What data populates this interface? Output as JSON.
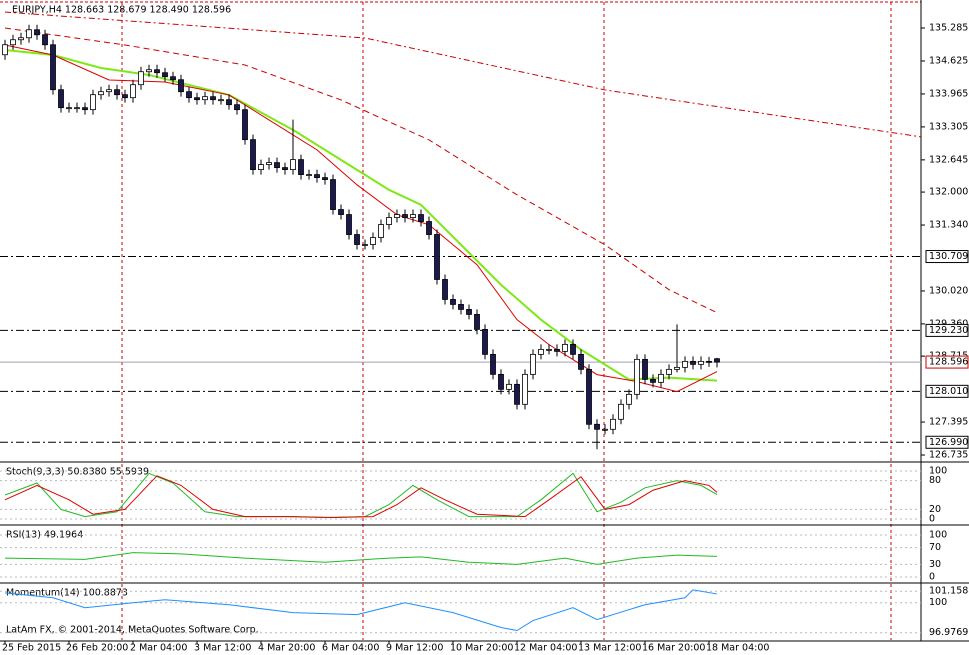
{
  "chart_data": {
    "type": "candlestick",
    "title": "EURJPY,H4 128.663 128.679 128.490 128.596",
    "ylim": [
      126.595,
      135.846
    ],
    "yticks": [
      135.285,
      134.625,
      133.965,
      133.305,
      132.645,
      {
        "value": 132,
        "label": "132.000"
      },
      {
        "value": 131.34,
        "label": "131.340"
      },
      {
        "value": 130.02,
        "label": "130.020"
      },
      {
        "value": 129.36,
        "label": "129.360"
      },
      128.715,
      127.395,
      126.735
    ],
    "levels": [
      130.709,
      {
        "value": 129.23,
        "label": "129.230"
      },
      {
        "value": 128.01,
        "label": "128.010"
      },
      {
        "value": 126.99,
        "label": "126.990"
      }
    ],
    "current_price": 128.596,
    "bull_color": "#ffffff",
    "bear_color": "#1a1a4e",
    "candles": [
      [
        134.75,
        135.05,
        134.65,
        134.95
      ],
      [
        134.95,
        135.15,
        134.85,
        135.05
      ],
      [
        135.05,
        135.19,
        134.95,
        135.09
      ],
      [
        135.09,
        135.35,
        134.99,
        135.25
      ],
      [
        135.25,
        135.35,
        135.05,
        135.15
      ],
      [
        135.15,
        135.25,
        134.85,
        134.95
      ],
      [
        134.95,
        135.05,
        133.95,
        134.05
      ],
      [
        134.05,
        134.15,
        133.59,
        133.69
      ],
      [
        133.69,
        133.79,
        133.59,
        133.69
      ],
      [
        133.69,
        133.79,
        133.59,
        133.69
      ],
      [
        133.69,
        133.79,
        133.55,
        133.65
      ],
      [
        133.65,
        134.05,
        133.55,
        133.95
      ],
      [
        133.95,
        134.11,
        133.85,
        134.01
      ],
      [
        134.01,
        134.15,
        133.91,
        134.05
      ],
      [
        134.05,
        134.15,
        133.85,
        133.95
      ],
      [
        133.95,
        134.05,
        133.79,
        133.89
      ],
      [
        133.89,
        134.25,
        133.79,
        134.15
      ],
      [
        134.15,
        134.51,
        134.05,
        134.41
      ],
      [
        134.41,
        134.55,
        134.31,
        134.45
      ],
      [
        134.45,
        134.55,
        134.29,
        134.39
      ],
      [
        134.39,
        134.49,
        134.21,
        134.31
      ],
      [
        134.31,
        134.41,
        134.15,
        134.25
      ],
      [
        134.25,
        134.35,
        133.91,
        134.01
      ],
      [
        134.01,
        134.11,
        133.79,
        133.89
      ],
      [
        133.89,
        133.99,
        133.75,
        133.85
      ],
      [
        133.85,
        134.01,
        133.75,
        133.91
      ],
      [
        133.91,
        134.01,
        133.75,
        133.85
      ],
      [
        133.85,
        133.95,
        133.75,
        133.85
      ],
      [
        133.85,
        133.95,
        133.65,
        133.75
      ],
      [
        133.75,
        133.85,
        133.55,
        133.65
      ],
      [
        133.65,
        133.75,
        132.95,
        133.05
      ],
      [
        133.05,
        133.15,
        132.35,
        132.45
      ],
      [
        132.45,
        132.65,
        132.35,
        132.55
      ],
      [
        132.55,
        132.69,
        132.45,
        132.59
      ],
      [
        132.59,
        132.69,
        132.39,
        132.49
      ],
      [
        132.49,
        132.59,
        132.35,
        132.45
      ],
      [
        132.45,
        133.45,
        132.35,
        132.65
      ],
      [
        132.65,
        132.75,
        132.25,
        132.35
      ],
      [
        132.35,
        132.45,
        132.25,
        132.35
      ],
      [
        132.35,
        132.45,
        132.19,
        132.29
      ],
      [
        132.29,
        132.39,
        132.15,
        132.25
      ],
      [
        132.25,
        132.35,
        131.55,
        131.65
      ],
      [
        131.65,
        131.75,
        131.45,
        131.55
      ],
      [
        131.55,
        131.65,
        131.05,
        131.15
      ],
      [
        131.15,
        131.25,
        130.85,
        130.95
      ],
      [
        130.95,
        131.05,
        130.85,
        130.95
      ],
      [
        130.95,
        131.19,
        130.85,
        131.09
      ],
      [
        131.09,
        131.45,
        130.99,
        131.35
      ],
      [
        131.35,
        131.59,
        131.25,
        131.49
      ],
      [
        131.49,
        131.65,
        131.39,
        131.55
      ],
      [
        131.55,
        131.65,
        131.39,
        131.49
      ],
      [
        131.49,
        131.65,
        131.39,
        131.55
      ],
      [
        131.55,
        131.65,
        131.31,
        131.41
      ],
      [
        131.41,
        131.51,
        131.05,
        131.15
      ],
      [
        131.15,
        131.25,
        130.15,
        130.25
      ],
      [
        130.25,
        130.35,
        129.75,
        129.85
      ],
      [
        129.85,
        129.95,
        129.65,
        129.75
      ],
      [
        129.75,
        129.85,
        129.55,
        129.65
      ],
      [
        129.65,
        129.75,
        129.45,
        129.55
      ],
      [
        129.55,
        129.65,
        129.15,
        129.25
      ],
      [
        129.25,
        129.35,
        128.65,
        128.75
      ],
      [
        128.75,
        128.85,
        128.25,
        128.35
      ],
      [
        128.35,
        128.45,
        127.95,
        128.05
      ],
      [
        128.05,
        128.25,
        127.95,
        128.15
      ],
      [
        128.15,
        128.25,
        127.65,
        127.75
      ],
      [
        127.75,
        128.45,
        127.65,
        128.35
      ],
      [
        128.35,
        128.85,
        128.25,
        128.75
      ],
      [
        128.75,
        128.95,
        128.65,
        128.85
      ],
      [
        128.85,
        128.95,
        128.75,
        128.85
      ],
      [
        128.85,
        128.95,
        128.71,
        128.81
      ],
      [
        128.81,
        129.05,
        128.71,
        128.95
      ],
      [
        128.95,
        129.05,
        128.65,
        128.75
      ],
      [
        128.75,
        128.85,
        128.35,
        128.45
      ],
      [
        128.45,
        128.55,
        127.25,
        127.35
      ],
      [
        127.35,
        127.45,
        126.85,
        127.25
      ],
      [
        127.25,
        127.35,
        127.15,
        127.25
      ],
      [
        127.25,
        127.55,
        127.15,
        127.45
      ],
      [
        127.45,
        127.85,
        127.35,
        127.75
      ],
      [
        127.75,
        128.05,
        127.65,
        127.95
      ],
      [
        127.95,
        128.75,
        127.85,
        128.65
      ],
      [
        128.65,
        128.75,
        128.15,
        128.25
      ],
      [
        128.25,
        128.35,
        128.09,
        128.19
      ],
      [
        128.19,
        128.45,
        128.09,
        128.35
      ],
      [
        128.35,
        128.55,
        128.25,
        128.45
      ],
      [
        128.45,
        129.35,
        128.39,
        128.49
      ],
      [
        128.49,
        128.71,
        128.39,
        128.61
      ],
      [
        128.61,
        128.71,
        128.45,
        128.55
      ],
      [
        128.55,
        128.71,
        128.45,
        128.61
      ],
      [
        128.61,
        128.7,
        128.5,
        128.6
      ],
      [
        128.663,
        128.679,
        128.49,
        128.596
      ]
    ],
    "moving_averages": [
      {
        "color": "#cc0000",
        "dash": "6 3 2 3",
        "points": [
          [
            0,
            135.605
          ],
          [
            45,
            135.085
          ],
          [
            75,
            134.045
          ],
          [
            114.5,
            133.105
          ]
        ]
      },
      {
        "color": "#cc0000",
        "dash": "6 4",
        "points": [
          [
            0,
            135.285
          ],
          [
            15,
            134.945
          ],
          [
            30,
            134.545
          ],
          [
            42,
            133.845
          ],
          [
            53,
            133.045
          ],
          [
            64,
            131.945
          ],
          [
            75,
            130.945
          ],
          [
            83,
            130.045
          ],
          [
            89,
            129.585
          ]
        ]
      },
      {
        "color": "#7fe817",
        "dash": "",
        "points": [
          [
            0,
            134.845
          ],
          [
            6,
            134.745
          ],
          [
            12,
            134.485
          ],
          [
            18,
            134.345
          ],
          [
            28,
            133.945
          ],
          [
            36,
            133.245
          ],
          [
            43,
            132.545
          ],
          [
            48,
            132.045
          ],
          [
            52,
            131.745
          ],
          [
            57,
            130.945
          ],
          [
            62,
            130.145
          ],
          [
            67,
            129.445
          ],
          [
            72,
            128.845
          ],
          [
            78,
            128.245
          ],
          [
            83,
            128.285
          ],
          [
            89,
            128.225
          ]
        ]
      },
      {
        "color": "#dd0000",
        "dash": "",
        "points": [
          [
            0,
            134.945
          ],
          [
            6,
            134.745
          ],
          [
            13,
            134.245
          ],
          [
            20,
            134.205
          ],
          [
            28,
            133.945
          ],
          [
            33,
            133.445
          ],
          [
            39,
            132.845
          ],
          [
            44,
            132.145
          ],
          [
            49,
            131.545
          ],
          [
            53,
            131.345
          ],
          [
            59,
            130.545
          ],
          [
            64,
            129.445
          ],
          [
            68,
            128.945
          ],
          [
            74,
            128.345
          ],
          [
            79,
            128.205
          ],
          [
            84,
            128.005
          ],
          [
            89,
            128.405
          ]
        ]
      }
    ],
    "x_labels": [
      "25 Feb 2015",
      "26 Feb 20:00",
      "2 Mar 04:00",
      "3 Mar 12:00",
      "4 Mar 20:00",
      "6 Mar 04:00",
      "9 Mar 12:00",
      "10 Mar 20:00",
      "12 Mar 04:00",
      "13 Mar 12:00",
      "16 Mar 20:00",
      "18 Mar 04:00"
    ],
    "indicators": [
      {
        "label": "Stoch(9,3,3) 50.8380 55.5939",
        "ylim": [
          -12.5,
          116.7
        ],
        "yticks": [
          100,
          80,
          20,
          0
        ],
        "series": [
          {
            "color": "#22bb22",
            "points": [
              [
                0,
                50
              ],
              [
                4,
                75
              ],
              [
                7,
                20
              ],
              [
                10,
                5
              ],
              [
                14,
                15
              ],
              [
                18,
                95
              ],
              [
                21,
                75
              ],
              [
                25,
                15
              ],
              [
                29,
                5
              ],
              [
                35,
                5
              ],
              [
                40,
                3
              ],
              [
                45,
                5
              ],
              [
                48,
                30
              ],
              [
                51,
                70
              ],
              [
                54,
                40
              ],
              [
                58,
                5
              ],
              [
                64,
                5
              ],
              [
                67,
                40
              ],
              [
                71,
                95
              ],
              [
                74,
                15
              ],
              [
                77,
                35
              ],
              [
                80,
                65
              ],
              [
                84,
                80
              ],
              [
                87,
                70
              ],
              [
                89,
                50.838
              ]
            ]
          },
          {
            "color": "#dd0000",
            "points": [
              [
                0,
                40
              ],
              [
                4,
                70
              ],
              [
                8,
                40
              ],
              [
                11,
                10
              ],
              [
                15,
                20
              ],
              [
                19,
                90
              ],
              [
                22,
                70
              ],
              [
                26,
                20
              ],
              [
                30,
                5
              ],
              [
                36,
                5
              ],
              [
                41,
                3
              ],
              [
                46,
                5
              ],
              [
                49,
                30
              ],
              [
                52,
                65
              ],
              [
                55,
                40
              ],
              [
                59,
                10
              ],
              [
                65,
                5
              ],
              [
                68,
                40
              ],
              [
                72,
                88
              ],
              [
                75,
                20
              ],
              [
                78,
                30
              ],
              [
                81,
                60
              ],
              [
                85,
                80
              ],
              [
                88,
                70
              ],
              [
                89,
                55.594
              ]
            ]
          }
        ]
      },
      {
        "label": "RSI(13) 49.1964",
        "ylim": [
          -14.3,
          121.4
        ],
        "yticks": [
          100,
          70,
          30,
          0
        ],
        "series": [
          {
            "color": "#22bb22",
            "points": [
              [
                0,
                45
              ],
              [
                10,
                42
              ],
              [
                16,
                58
              ],
              [
                22,
                55
              ],
              [
                30,
                45
              ],
              [
                40,
                35
              ],
              [
                48,
                45
              ],
              [
                52,
                48
              ],
              [
                58,
                35
              ],
              [
                64,
                30
              ],
              [
                70,
                45
              ],
              [
                74,
                30
              ],
              [
                79,
                45
              ],
              [
                84,
                52
              ],
              [
                89,
                49.196
              ]
            ]
          }
        ]
      },
      {
        "label": "Momentum(14) 100.8873",
        "ylim": [
          96.14,
          101.89
        ],
        "yticks": [
          101.1588,
          100,
          96.9769
        ],
        "series": [
          {
            "color": "#1e90ff",
            "points": [
              [
                0,
                101
              ],
              [
                6,
                100.5
              ],
              [
                10,
                99.5
              ],
              [
                16,
                100
              ],
              [
                20,
                100.3
              ],
              [
                28,
                99.8
              ],
              [
                36,
                99
              ],
              [
                44,
                98.8
              ],
              [
                50,
                100
              ],
              [
                56,
                99
              ],
              [
                62,
                97.5
              ],
              [
                64,
                97.2
              ],
              [
                66,
                98.2
              ],
              [
                71,
                99.5
              ],
              [
                74,
                98.3
              ],
              [
                80,
                99.8
              ],
              [
                85,
                100.5
              ],
              [
                86,
                101.3
              ],
              [
                89,
                100.887
              ]
            ]
          }
        ]
      }
    ],
    "copyright": "LatAm FX, © 2001-2014, MetaQuotes Software Corp."
  }
}
